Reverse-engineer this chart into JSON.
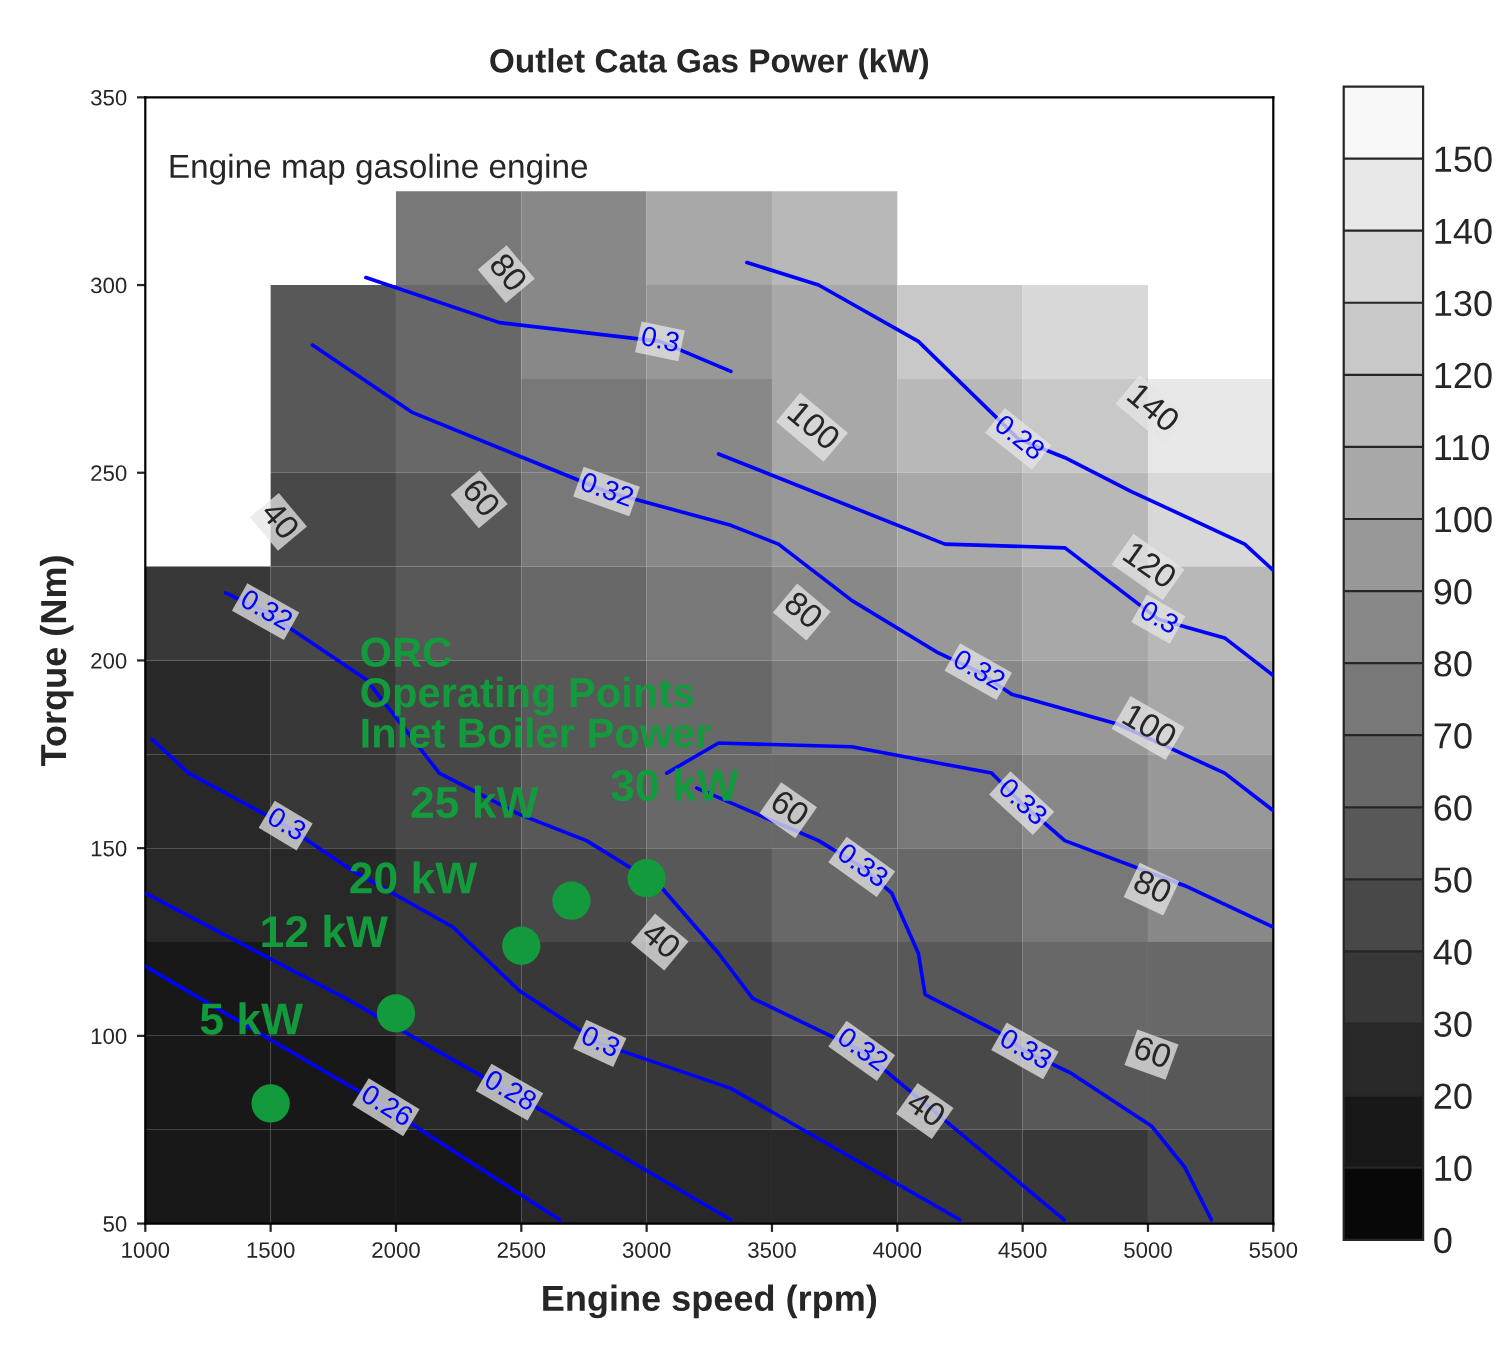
{
  "chart_data": {
    "type": "heatmap",
    "title": "Outlet Cata Gas Power (kW)",
    "xlabel": "Engine speed (rpm)",
    "ylabel": "Torque (Nm)",
    "x": [
      1250,
      1750,
      2250,
      2750,
      3250,
      3750,
      4250,
      4750,
      5250
    ],
    "y": [
      312.5,
      287.5,
      262.5,
      237.5,
      212.5,
      187.5,
      162.5,
      137.5,
      112.5,
      87.5,
      62.5
    ],
    "cells": [
      [
        null,
        null,
        71,
        86,
        101,
        116,
        null,
        null,
        null
      ],
      [
        null,
        53,
        67,
        82,
        95,
        109,
        123,
        137,
        null
      ],
      [
        null,
        50,
        63,
        76,
        89,
        102,
        115,
        128,
        141
      ],
      [
        null,
        46,
        58,
        71,
        83,
        95,
        107,
        119,
        130
      ],
      [
        31,
        42,
        53,
        65,
        76,
        87,
        98,
        108,
        119
      ],
      [
        28,
        38,
        48,
        58,
        68,
        78,
        88,
        98,
        108
      ],
      [
        24,
        34,
        43,
        52,
        60,
        69,
        78,
        87,
        95
      ],
      [
        21,
        29,
        37,
        45,
        52,
        60,
        67,
        75,
        82
      ],
      [
        18,
        24,
        31,
        37,
        44,
        50,
        56,
        63,
        69
      ],
      [
        14,
        19,
        24,
        30,
        35,
        40,
        45,
        50,
        55
      ],
      [
        10,
        14,
        18,
        22,
        25,
        29,
        33,
        36,
        40
      ]
    ],
    "clim": [
      0,
      160
    ],
    "cticks": [
      0,
      10,
      20,
      30,
      40,
      50,
      60,
      70,
      80,
      90,
      100,
      110,
      120,
      130,
      140,
      150
    ],
    "xlim": [
      1000,
      5500
    ],
    "xticks": [
      1000,
      1500,
      2000,
      2500,
      3000,
      3500,
      4000,
      4500,
      5000,
      5500
    ],
    "ylim": [
      50,
      350
    ],
    "yticks": [
      50,
      100,
      150,
      200,
      250,
      300,
      350
    ],
    "series": [
      {
        "type": "line",
        "color": "#0000ff",
        "x": [
          1027,
          1173,
          1560,
          1827,
          2227,
          2493,
          2813,
          3336,
          4250
        ],
        "values": [
          179,
          170,
          156,
          144,
          129,
          112,
          98,
          86,
          51
        ]
      },
      {
        "type": "line",
        "color": "#0000ff",
        "x": [
          1000,
          1800,
          2453,
          2900,
          3336
        ],
        "values": [
          138,
          110,
          85,
          68,
          51
        ]
      },
      {
        "type": "line",
        "color": "#0000ff",
        "x": [
          1000,
          1960,
          2653
        ],
        "values": [
          118.5,
          81,
          51
        ]
      },
      {
        "type": "line",
        "color": "#0000ff",
        "x": [
          1320,
          1480,
          1613,
          1880,
          2173,
          2493,
          2760,
          3053,
          3287,
          3423,
          3858,
          4666
        ],
        "values": [
          218,
          213,
          207,
          195,
          170,
          159,
          152,
          140,
          122,
          110,
          96,
          51
        ]
      },
      {
        "type": "line",
        "color": "#0000ff",
        "x": [
          3080,
          3287,
          3818,
          4376,
          4496,
          4668,
          5147,
          5500
        ],
        "values": [
          170,
          178,
          177,
          170,
          162,
          152,
          140,
          129
        ]
      },
      {
        "type": "line",
        "color": "#0000ff",
        "x": [
          3200,
          3686,
          3858,
          3978,
          4084,
          4111,
          4403,
          4509,
          4695,
          5014,
          5147,
          5253
        ],
        "values": [
          166,
          152,
          145,
          138,
          122,
          111,
          101,
          96,
          90,
          76,
          65,
          51
        ]
      },
      {
        "type": "line",
        "color": "#0000ff",
        "x": [
          1667,
          2067,
          2840,
          3336,
          3526,
          3818,
          4164,
          4323,
          4456,
          4881,
          5306,
          5500
        ],
        "values": [
          284,
          266,
          245,
          236,
          231,
          216,
          202,
          197,
          191,
          183,
          170,
          160
        ]
      },
      {
        "type": "line",
        "color": "#0000ff",
        "x": [
          1880,
          2413,
          3053,
          3336
        ],
        "values": [
          302,
          290,
          285,
          277
        ]
      },
      {
        "type": "line",
        "color": "#0000ff",
        "x": [
          3287,
          4190,
          4669,
          5041,
          5306,
          5500
        ],
        "values": [
          255,
          231,
          230,
          211,
          206,
          196
        ]
      },
      {
        "type": "line",
        "color": "#0000ff",
        "x": [
          3400,
          3686,
          4084,
          4483,
          4669,
          4934,
          5386,
          5500
        ],
        "values": [
          306,
          300,
          285,
          259,
          254,
          245,
          231,
          224
        ]
      },
      {
        "type": "scatter",
        "name": "ORC\nOperating Points\nInlet Boiler Power",
        "color": "#129a3c",
        "x": [
          1500,
          2000,
          2500,
          2700,
          3000
        ],
        "values": [
          82,
          106,
          124,
          136,
          142
        ]
      }
    ],
    "annotations": [
      "Engine map gasoline engine",
      "80",
      "60",
      "40",
      "40",
      "100",
      "140",
      "120",
      "80",
      "100",
      "80",
      "60",
      "60",
      "40",
      {
        "text": "0.3",
        "x": 1560,
        "y": 156
      },
      {
        "text": "0.3",
        "x": 2813,
        "y": 98
      },
      {
        "text": "0.28",
        "x": 2453,
        "y": 85
      },
      {
        "text": "0.26",
        "x": 1960,
        "y": 81
      },
      {
        "text": "0.32",
        "x": 1480,
        "y": 213
      },
      {
        "text": "0.32",
        "x": 3858,
        "y": 96
      },
      {
        "text": "0.33",
        "x": 4496,
        "y": 162
      },
      {
        "text": "0.33",
        "x": 3858,
        "y": 145
      },
      {
        "text": "0.33",
        "x": 4509,
        "y": 96
      },
      {
        "text": "0.32",
        "x": 2840,
        "y": 245
      },
      {
        "text": "0.32",
        "x": 4323,
        "y": 197
      },
      {
        "text": "0.3",
        "x": 3053,
        "y": 285
      },
      {
        "text": "0.3",
        "x": 5041,
        "y": 211
      },
      {
        "text": "0.28",
        "x": 4483,
        "y": 259
      },
      {
        "text": "5 kW",
        "x": 1500,
        "y": 82
      },
      {
        "text": "12 kW",
        "x": 2000,
        "y": 106
      },
      {
        "text": "20 kW",
        "x": 2500,
        "y": 124
      },
      {
        "text": "25 kW",
        "x": 2700,
        "y": 136
      },
      {
        "text": "30 kW",
        "x": 3000,
        "y": 142
      }
    ]
  }
}
